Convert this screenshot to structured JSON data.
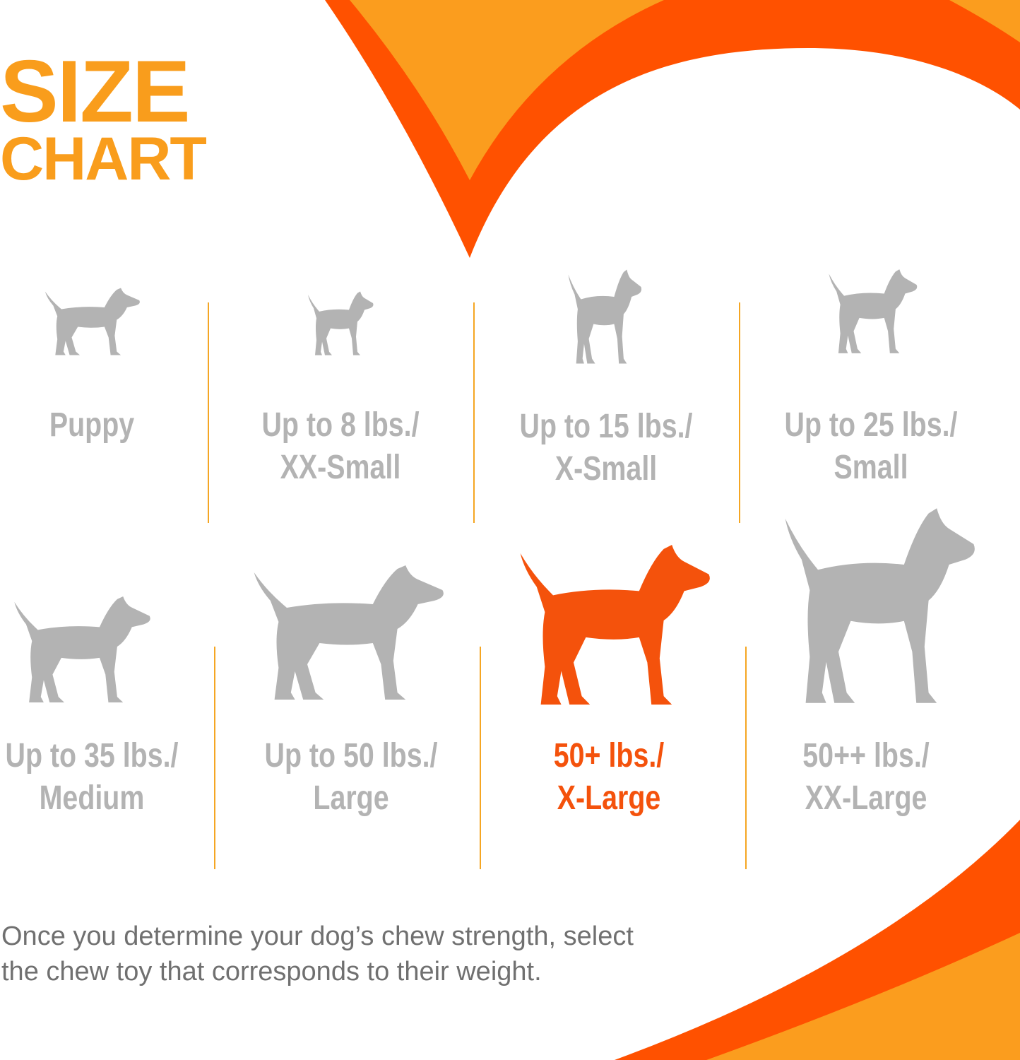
{
  "title": {
    "line1": "SIZE",
    "line2": "CHART"
  },
  "colors": {
    "title": "#F99D1C",
    "accent_red": "#FF5100",
    "accent_orange": "#FB9D1E",
    "label_gray": "#B3B3B3",
    "highlight": "#F4520C",
    "divider": "#F5A623"
  },
  "sizes": [
    {
      "line1": "Puppy",
      "line2": "",
      "icon": "puppy-silhouette-icon",
      "highlighted": false
    },
    {
      "line1": "Up to 8 lbs./",
      "line2": "XX-Small",
      "icon": "chihuahua-silhouette-icon",
      "highlighted": false
    },
    {
      "line1": "Up to 15 lbs./",
      "line2": "X-Small",
      "icon": "toy-terrier-silhouette-icon",
      "highlighted": false
    },
    {
      "line1": "Up to 25 lbs./",
      "line2": "Small",
      "icon": "yorkie-silhouette-icon",
      "highlighted": false
    },
    {
      "line1": "Up to 35 lbs./",
      "line2": "Medium",
      "icon": "beagle-silhouette-icon",
      "highlighted": false
    },
    {
      "line1": "Up to 50 lbs./",
      "line2": "Large",
      "icon": "labrador-silhouette-icon",
      "highlighted": false
    },
    {
      "line1": "50+ lbs./",
      "line2": "X-Large",
      "icon": "shepherd-silhouette-icon",
      "highlighted": true
    },
    {
      "line1": "50++ lbs./",
      "line2": "XX-Large",
      "icon": "great-dane-silhouette-icon",
      "highlighted": false
    }
  ],
  "note": {
    "line1": "Once you determine your dog’s chew strength, select",
    "line2": "the chew toy that corresponds to their weight."
  }
}
